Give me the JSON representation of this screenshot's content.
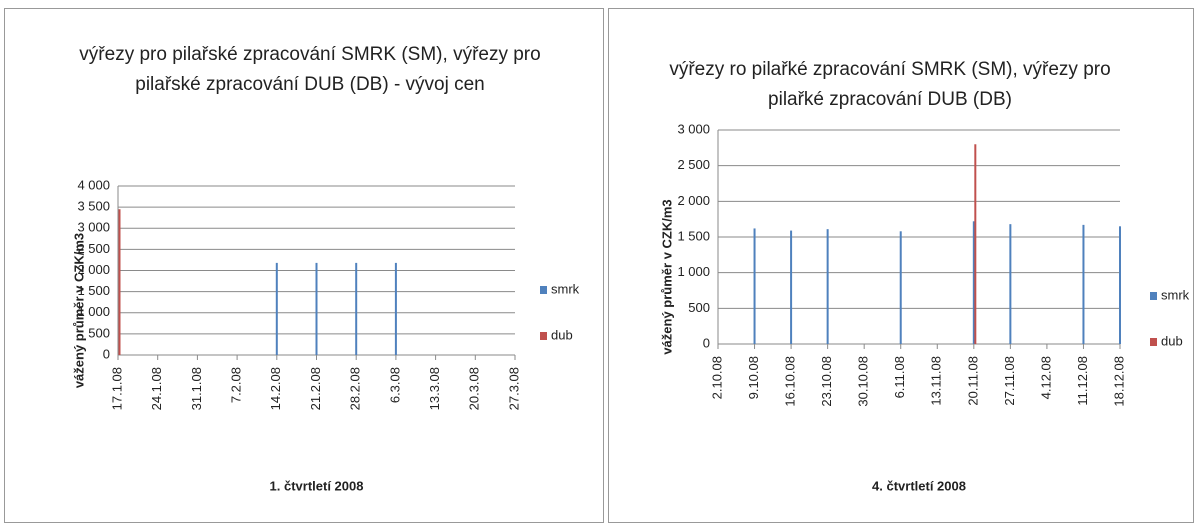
{
  "chart_data": [
    {
      "type": "bar",
      "title": "výřezy pro pilařské zpracování SMRK (SM), výřezy pro pilařské zpracování DUB (DB) - vývoj cen",
      "y_label": "vážený průměr v CZK/m3",
      "x_label": "1. čtvrtletí 2008",
      "categories": [
        "17.1.08",
        "24.1.08",
        "31.1.08",
        "7.2.08",
        "14.2.08",
        "21.2.08",
        "28.2.08",
        "6.3.08",
        "13.3.08",
        "20.3.08",
        "27.3.08"
      ],
      "series": [
        {
          "name": "smrk",
          "color": "#4f81bd",
          "values": [
            null,
            null,
            null,
            null,
            2180,
            2180,
            2180,
            2180,
            null,
            null,
            null
          ]
        },
        {
          "name": "dub",
          "color": "#c0504d",
          "values": [
            3450,
            null,
            null,
            null,
            null,
            null,
            null,
            null,
            null,
            null,
            null
          ]
        }
      ],
      "ylim": [
        0,
        4000
      ],
      "yticks": [
        0,
        500,
        {
          "value": 1000,
          "label": "1 000"
        },
        {
          "value": 1500,
          "label": "1 500"
        },
        {
          "value": 2000,
          "label": "2 000"
        },
        {
          "value": 2500,
          "label": "2 500"
        },
        {
          "value": 3000,
          "label": "3 000"
        },
        {
          "value": 3500,
          "label": "3 500"
        },
        {
          "value": 4000,
          "label": "4 000"
        }
      ],
      "grid": true,
      "legend": "right"
    },
    {
      "type": "bar",
      "title": "výřezy ro pilařké zpracování SMRK (SM), výřezy pro pilařké zpracování DUB (DB)",
      "y_label": "vážený průměr v CZK/m3",
      "x_label": "4. čtvrtletí 2008",
      "categories": [
        "2.10.08",
        "9.10.08",
        "16.10.08",
        "23.10.08",
        "30.10.08",
        "6.11.08",
        "13.11.08",
        "20.11.08",
        "27.11.08",
        "4.12.08",
        "11.12.08",
        "18.12.08"
      ],
      "series": [
        {
          "name": "smrk",
          "color": "#4f81bd",
          "values": [
            null,
            1620,
            1590,
            1610,
            null,
            1580,
            null,
            1720,
            1680,
            null,
            1670,
            1650
          ]
        },
        {
          "name": "dub",
          "color": "#c0504d",
          "values": [
            null,
            null,
            null,
            null,
            null,
            null,
            null,
            2800,
            null,
            null,
            null,
            null
          ]
        }
      ],
      "ylim": [
        0,
        3000
      ],
      "yticks": [
        0,
        500,
        {
          "value": 1000,
          "label": "1 000"
        },
        {
          "value": 1500,
          "label": "1 500"
        },
        {
          "value": 2000,
          "label": "2 000"
        },
        {
          "value": 2500,
          "label": "2 500"
        },
        {
          "value": 3000,
          "label": "3 000"
        }
      ],
      "grid": true,
      "legend": "right"
    }
  ]
}
